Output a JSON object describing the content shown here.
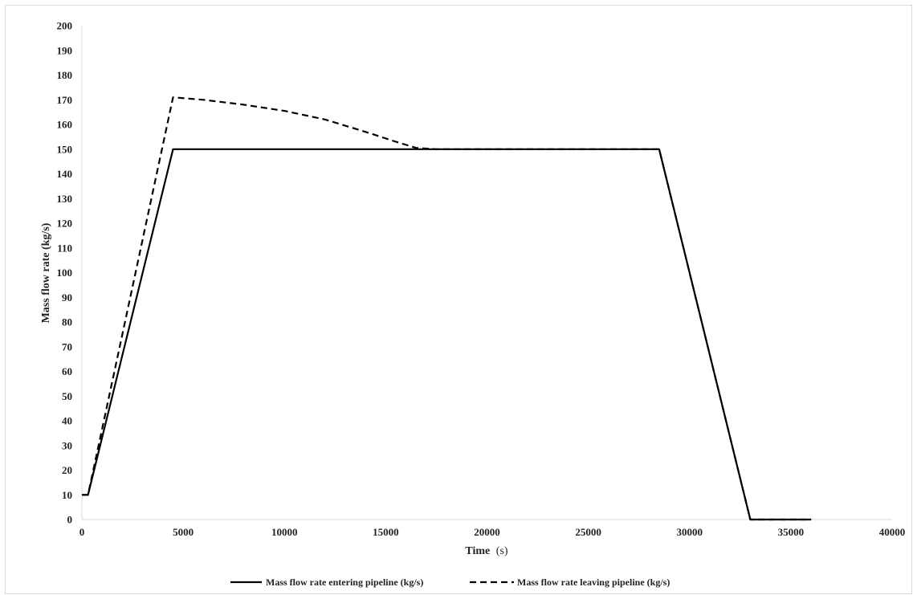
{
  "chart_data": {
    "type": "line",
    "title": "",
    "xlabel": "Time",
    "xlabel_unit": "(s)",
    "ylabel": "Mass flow rate (kg/s)",
    "xlim": [
      0,
      40000
    ],
    "ylim": [
      0,
      200
    ],
    "x_ticks": [
      0,
      5000,
      10000,
      15000,
      20000,
      25000,
      30000,
      35000,
      40000
    ],
    "y_ticks": [
      0,
      10,
      20,
      30,
      40,
      50,
      60,
      70,
      80,
      90,
      100,
      110,
      120,
      130,
      140,
      150,
      160,
      170,
      180,
      190,
      200
    ],
    "grid": false,
    "legend_position": "bottom",
    "series": [
      {
        "name": "Mass flow rate entering pipeline (kg/s)",
        "style": "solid",
        "color": "#000000",
        "x": [
          0,
          300,
          4500,
          28500,
          33000,
          36000
        ],
        "y": [
          10,
          10,
          150,
          150,
          0,
          0
        ]
      },
      {
        "name": "Mass flow rate leaving pipeline (kg/s)",
        "style": "dashed",
        "color": "#000000",
        "x": [
          0,
          300,
          4500,
          6000,
          8000,
          10000,
          12000,
          14000,
          15500,
          16500,
          17500,
          28500,
          33000,
          36000
        ],
        "y": [
          10,
          10,
          171,
          170,
          168,
          165.5,
          162,
          157,
          153,
          150.5,
          150,
          150,
          0,
          0
        ]
      }
    ]
  }
}
